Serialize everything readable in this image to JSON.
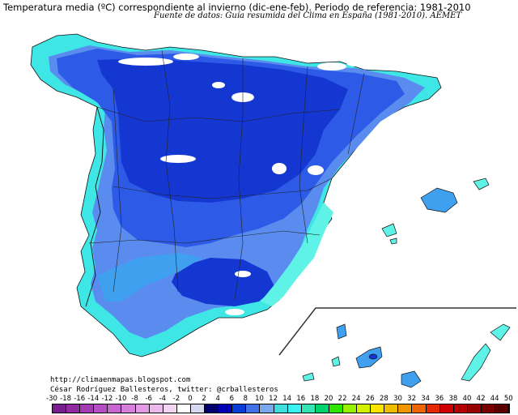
{
  "title": "Temperatura media (ºC) correspondiente al invierno (dic-ene-feb). Periodo de referencia: 1981-2010",
  "source": "Fuente de datos: Guía resumida del Clima en España (1981-2010). AEMET",
  "credits": {
    "url": "http://climaenmapas.blogspot.com",
    "author": "César Rodríguez Ballesteros, twitter: @crballesteros"
  },
  "legend": {
    "labels": [
      "-30",
      "-18",
      "-16",
      "-14",
      "-12",
      "-10",
      "-8",
      "-6",
      "-4",
      "-2",
      "0",
      "2",
      "4",
      "6",
      "8",
      "10",
      "12",
      "14",
      "16",
      "18",
      "20",
      "22",
      "24",
      "26",
      "28",
      "30",
      "32",
      "34",
      "36",
      "38",
      "40",
      "42",
      "44",
      "50"
    ],
    "colors": [
      "#7a1d8f",
      "#8f2aa3",
      "#a43bb5",
      "#b64fc4",
      "#c866d1",
      "#d680db",
      "#e29be4",
      "#ecb8ec",
      "#f4d6f4",
      "#ffffff",
      "#d8d8f0",
      "#00006e",
      "#0000b4",
      "#0a3cd8",
      "#3f72e8",
      "#78a8f0",
      "#3fdede",
      "#38f2f2",
      "#34e6b4",
      "#00d26e",
      "#2ee600",
      "#96f000",
      "#d2f000",
      "#f8e600",
      "#f0be00",
      "#f09600",
      "#f06400",
      "#e62800",
      "#d20000",
      "#b40000",
      "#960000",
      "#780000",
      "#5a0000"
    ]
  },
  "regions": {
    "peninsula": "España peninsular",
    "balearic": "Islas Baleares",
    "canary": "Islas Canarias"
  },
  "colors": {
    "cold_peaks": "#ffffff",
    "interior_high": "#1437d2",
    "interior": "#2d5ae6",
    "plains": "#5a8cf0",
    "valleys": "#3fa0f0",
    "coast": "#3fe6e6",
    "warm_coast": "#5ff2e6"
  }
}
